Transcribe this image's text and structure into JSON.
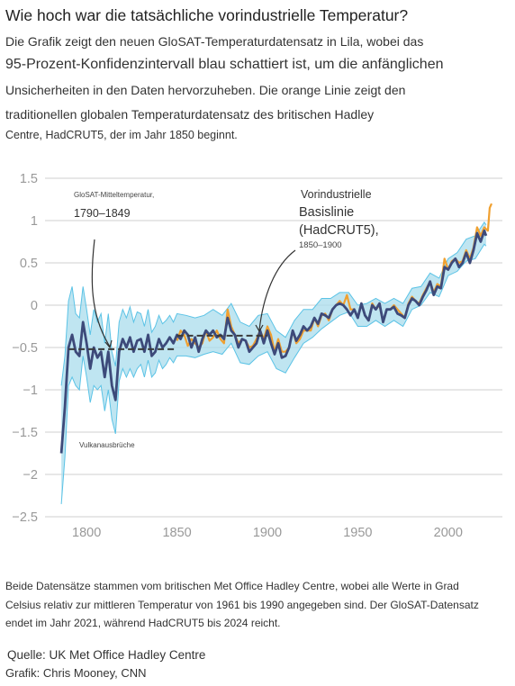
{
  "header": {
    "title": "Wie hoch war die tatsächliche vorindustrielle Temperatur?",
    "subtitle_lines": [
      "Die Grafik zeigt den neuen GloSAT-Temperaturdatensatz in Lila, wobei das",
      "95-Prozent-Konfidenzintervall blau schattiert ist, um die anfänglichen",
      "Unsicherheiten in den Daten hervorzuheben. Die orange Linie zeigt den",
      "traditionellen globalen Temperaturdatensatz des britischen Hadley",
      "Centre, HadCRUT5, der im Jahr 1850 beginnt."
    ]
  },
  "annotations": {
    "glosat_small": "GloSAT-Mitteltemperatur,",
    "glosat_years": "1790–1849",
    "baseline_1": "Vorindustrielle",
    "baseline_2": "Basislinie",
    "baseline_3": "(HadCRUT5),",
    "baseline_years": "1850–1900",
    "volcano": "Vulkanausbrüche"
  },
  "footer": {
    "note_lines": [
      "Beide Datensätze stammen vom britischen Met Office Hadley Centre, wobei alle Werte in Grad",
      "Celsius relativ zur mittleren Temperatur von 1961 bis 1990 angegeben sind. Der GloSAT-Datensatz",
      "endet im Jahr 2021, während HadCRUT5 bis 2024 reicht."
    ],
    "source": "Quelle: UK Met Office Hadley Centre",
    "credit": "Grafik: Chris Mooney, CNN"
  },
  "colors": {
    "glosat": "#3d4a7a",
    "glosat_band": "#a9dcec",
    "glosat_band_edge": "#5bc3e6",
    "hadcrut": "#f0a030",
    "baseline_dash": "#3a3a3a",
    "grid": "#cfcfcf"
  },
  "chart_data": {
    "type": "line",
    "x_ticks": [
      1800,
      1850,
      1900,
      1950,
      2000
    ],
    "y_ticks": [
      1.5,
      1,
      0.5,
      0,
      -0.5,
      -1,
      -1.5,
      -2,
      -2.5
    ],
    "y_tick_labels": [
      "1.5",
      "1",
      "0.5",
      "0",
      "−0.5",
      "−1",
      "−1.5",
      "−2",
      "−2.5"
    ],
    "xlim": [
      1777,
      2030
    ],
    "ylim": [
      -2.5,
      1.5
    ],
    "grid": "horizontal",
    "reference_lines": [
      {
        "label": "1790–1849",
        "x_start": 1790,
        "x_end": 1849,
        "y": -0.52
      },
      {
        "label": "1850–1900",
        "x_start": 1850,
        "x_end": 1900,
        "y": -0.36
      }
    ],
    "series": [
      {
        "id": "glosat",
        "x": [
          1786,
          1788,
          1790,
          1792,
          1794,
          1796,
          1798,
          1800,
          1802,
          1804,
          1806,
          1808,
          1810,
          1812,
          1814,
          1816,
          1818,
          1820,
          1822,
          1824,
          1826,
          1828,
          1830,
          1832,
          1834,
          1836,
          1838,
          1840,
          1842,
          1844,
          1846,
          1848,
          1850,
          1852,
          1854,
          1856,
          1858,
          1860,
          1862,
          1864,
          1866,
          1868,
          1870,
          1872,
          1874,
          1876,
          1878,
          1880,
          1882,
          1884,
          1886,
          1888,
          1890,
          1892,
          1894,
          1896,
          1898,
          1900,
          1902,
          1904,
          1906,
          1908,
          1910,
          1912,
          1914,
          1916,
          1918,
          1920,
          1922,
          1924,
          1926,
          1928,
          1930,
          1932,
          1934,
          1936,
          1938,
          1940,
          1942,
          1944,
          1946,
          1948,
          1950,
          1952,
          1954,
          1956,
          1958,
          1960,
          1962,
          1964,
          1966,
          1968,
          1970,
          1972,
          1974,
          1976,
          1978,
          1980,
          1982,
          1984,
          1986,
          1988,
          1990,
          1992,
          1994,
          1996,
          1998,
          2000,
          2002,
          2004,
          2006,
          2008,
          2010,
          2012,
          2014,
          2016,
          2018,
          2020,
          2021
        ],
        "y": [
          -1.75,
          -1.2,
          -0.5,
          -0.35,
          -0.55,
          -0.6,
          -0.2,
          -0.45,
          -0.75,
          -0.5,
          -0.62,
          -0.55,
          -0.85,
          -0.55,
          -0.95,
          -1.12,
          -0.55,
          -0.4,
          -0.5,
          -0.38,
          -0.55,
          -0.42,
          -0.4,
          -0.55,
          -0.35,
          -0.6,
          -0.55,
          -0.4,
          -0.5,
          -0.45,
          -0.38,
          -0.45,
          -0.35,
          -0.4,
          -0.3,
          -0.35,
          -0.5,
          -0.38,
          -0.55,
          -0.4,
          -0.3,
          -0.35,
          -0.3,
          -0.38,
          -0.35,
          -0.4,
          -0.15,
          -0.3,
          -0.35,
          -0.5,
          -0.4,
          -0.42,
          -0.55,
          -0.5,
          -0.45,
          -0.3,
          -0.45,
          -0.3,
          -0.45,
          -0.58,
          -0.45,
          -0.62,
          -0.6,
          -0.5,
          -0.3,
          -0.42,
          -0.35,
          -0.25,
          -0.3,
          -0.25,
          -0.15,
          -0.22,
          -0.1,
          -0.12,
          -0.15,
          -0.05,
          0.0,
          0.02,
          0.0,
          -0.05,
          -0.12,
          -0.05,
          -0.15,
          0.02,
          -0.12,
          -0.18,
          0.0,
          -0.05,
          0.02,
          -0.2,
          -0.05,
          -0.05,
          -0.02,
          -0.1,
          -0.12,
          -0.15,
          0.0,
          0.08,
          0.05,
          0.0,
          0.1,
          0.18,
          0.28,
          0.12,
          0.22,
          0.2,
          0.45,
          0.42,
          0.5,
          0.55,
          0.45,
          0.5,
          0.62,
          0.5,
          0.65,
          0.85,
          0.75,
          0.88,
          0.82
        ]
      },
      {
        "id": "hadcrut5",
        "x": [
          1850,
          1852,
          1854,
          1856,
          1858,
          1860,
          1862,
          1864,
          1866,
          1868,
          1870,
          1872,
          1874,
          1876,
          1878,
          1880,
          1882,
          1884,
          1886,
          1888,
          1890,
          1892,
          1894,
          1896,
          1898,
          1900,
          1902,
          1904,
          1906,
          1908,
          1910,
          1912,
          1914,
          1916,
          1918,
          1920,
          1922,
          1924,
          1926,
          1928,
          1930,
          1932,
          1934,
          1936,
          1938,
          1940,
          1942,
          1944,
          1946,
          1948,
          1950,
          1952,
          1954,
          1956,
          1958,
          1960,
          1962,
          1964,
          1966,
          1968,
          1970,
          1972,
          1974,
          1976,
          1978,
          1980,
          1982,
          1984,
          1986,
          1988,
          1990,
          1992,
          1994,
          1996,
          1998,
          2000,
          2002,
          2004,
          2006,
          2008,
          2010,
          2012,
          2014,
          2016,
          2018,
          2020,
          2022,
          2023,
          2024
        ],
        "y": [
          -0.42,
          -0.3,
          -0.35,
          -0.48,
          -0.4,
          -0.45,
          -0.5,
          -0.45,
          -0.3,
          -0.42,
          -0.38,
          -0.3,
          -0.4,
          -0.45,
          -0.05,
          -0.25,
          -0.35,
          -0.45,
          -0.4,
          -0.42,
          -0.5,
          -0.48,
          -0.4,
          -0.3,
          -0.4,
          -0.25,
          -0.35,
          -0.55,
          -0.4,
          -0.55,
          -0.55,
          -0.5,
          -0.3,
          -0.45,
          -0.4,
          -0.3,
          -0.3,
          -0.3,
          -0.15,
          -0.25,
          -0.12,
          -0.1,
          -0.18,
          -0.05,
          0.0,
          0.05,
          0.0,
          0.12,
          -0.05,
          -0.05,
          -0.15,
          0.02,
          -0.12,
          -0.18,
          0.02,
          -0.05,
          0.0,
          -0.2,
          -0.05,
          -0.05,
          0.0,
          -0.05,
          -0.1,
          -0.15,
          0.02,
          0.1,
          0.05,
          0.02,
          0.12,
          0.2,
          0.28,
          0.15,
          0.25,
          0.22,
          0.55,
          0.42,
          0.52,
          0.55,
          0.5,
          0.52,
          0.65,
          0.55,
          0.68,
          0.92,
          0.82,
          0.92,
          0.88,
          1.15,
          1.2
        ]
      }
    ],
    "confidence_band": {
      "series": "glosat",
      "x": [
        1786,
        1788,
        1790,
        1792,
        1794,
        1796,
        1798,
        1800,
        1802,
        1804,
        1806,
        1808,
        1810,
        1812,
        1814,
        1816,
        1818,
        1820,
        1822,
        1824,
        1826,
        1828,
        1830,
        1832,
        1834,
        1836,
        1838,
        1840,
        1842,
        1844,
        1846,
        1848,
        1850,
        1855,
        1860,
        1865,
        1870,
        1875,
        1880,
        1885,
        1890,
        1895,
        1900,
        1905,
        1910,
        1915,
        1920,
        1925,
        1930,
        1935,
        1940,
        1945,
        1950,
        1955,
        1960,
        1965,
        1970,
        1975,
        1980,
        1985,
        1990,
        1995,
        2000,
        2005,
        2010,
        2015,
        2020,
        2021
      ],
      "lower": [
        -2.35,
        -1.8,
        -0.95,
        -0.85,
        -0.95,
        -1.0,
        -0.6,
        -0.85,
        -1.15,
        -0.95,
        -1.0,
        -0.95,
        -1.25,
        -1.0,
        -1.35,
        -1.52,
        -0.9,
        -0.75,
        -0.85,
        -0.75,
        -0.85,
        -0.75,
        -0.7,
        -0.85,
        -0.65,
        -0.85,
        -0.8,
        -0.65,
        -0.75,
        -0.7,
        -0.62,
        -0.68,
        -0.6,
        -0.6,
        -0.62,
        -0.58,
        -0.55,
        -0.58,
        -0.45,
        -0.68,
        -0.7,
        -0.6,
        -0.55,
        -0.75,
        -0.8,
        -0.62,
        -0.45,
        -0.38,
        -0.28,
        -0.2,
        -0.12,
        -0.08,
        -0.25,
        -0.25,
        -0.18,
        -0.25,
        -0.18,
        -0.25,
        -0.05,
        0.0,
        0.15,
        0.1,
        0.35,
        0.4,
        0.52,
        0.55,
        0.72,
        0.7
      ],
      "upper": [
        -0.95,
        -0.6,
        0.05,
        0.22,
        -0.1,
        -0.15,
        0.22,
        -0.05,
        -0.35,
        -0.05,
        -0.2,
        -0.1,
        -0.45,
        -0.1,
        -0.55,
        -0.72,
        -0.2,
        -0.05,
        -0.15,
        -0.02,
        -0.2,
        -0.08,
        -0.1,
        -0.25,
        -0.05,
        -0.32,
        -0.25,
        -0.12,
        -0.22,
        -0.18,
        -0.12,
        -0.2,
        -0.1,
        -0.12,
        -0.15,
        -0.12,
        -0.05,
        -0.12,
        0.02,
        -0.2,
        -0.25,
        -0.12,
        -0.1,
        -0.3,
        -0.38,
        -0.18,
        -0.05,
        -0.05,
        0.08,
        0.08,
        0.15,
        0.15,
        0.0,
        0.02,
        0.08,
        0.02,
        0.08,
        0.02,
        0.2,
        0.22,
        0.38,
        0.32,
        0.55,
        0.62,
        0.78,
        0.82,
        0.98,
        0.95
      ]
    }
  }
}
